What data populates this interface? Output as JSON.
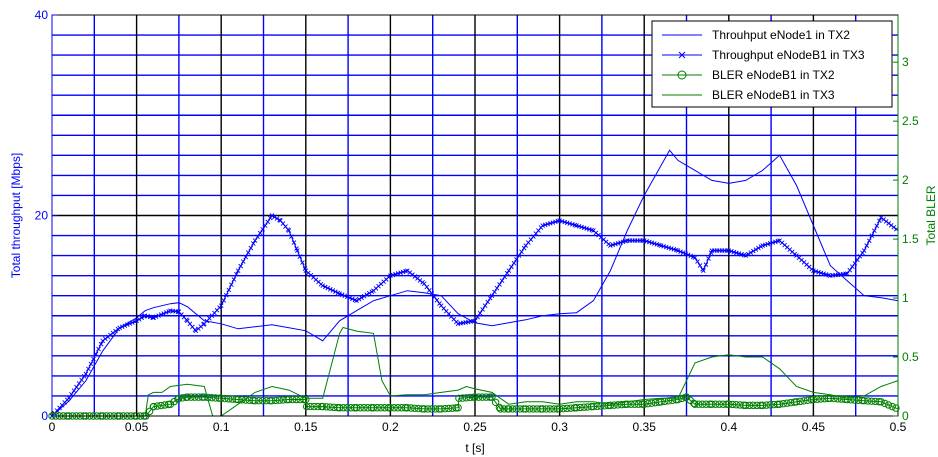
{
  "chart_data": {
    "type": "line",
    "xlabel": "t [s]",
    "ylabel_left": "Total throughput [Mbps]",
    "ylabel_right": "Total BLER",
    "xlim": [
      0,
      0.5
    ],
    "ylim_left": [
      0,
      40
    ],
    "ylim_right": [
      0,
      3.4
    ],
    "xticks": [
      0,
      0.05,
      0.1,
      0.15,
      0.2,
      0.25,
      0.3,
      0.35,
      0.4,
      0.45,
      0.5
    ],
    "xtick_labels": [
      "0",
      "0.05",
      "0.1",
      "0.15",
      "0.2",
      "0.25",
      "0.3",
      "0.35",
      "0.4",
      "0.45",
      "0.5"
    ],
    "yticks_left": [
      0,
      20,
      40
    ],
    "yticks_left_labels": [
      "0",
      "20",
      "40"
    ],
    "yticks_right": [
      0,
      0.5,
      1,
      1.5,
      2,
      2.5,
      3
    ],
    "yticks_right_labels": [
      "0",
      "0.5",
      "1",
      "1.5",
      "2",
      "2.5",
      "3"
    ],
    "grid": true,
    "legend_position": "top-right",
    "colors": {
      "throughput": "#0000ff",
      "bler": "#007f00",
      "grid_major": "#000000",
      "grid_minor": "#0000ff",
      "left_axis": "#0000ff",
      "right_axis": "#007f00"
    },
    "series": [
      {
        "name": "Throuhput eNode1 in TX2",
        "axis": "left",
        "style": "line",
        "x": [
          0,
          0.01,
          0.02,
          0.03,
          0.04,
          0.05,
          0.055,
          0.06,
          0.07,
          0.075,
          0.08,
          0.09,
          0.1,
          0.11,
          0.12,
          0.13,
          0.14,
          0.15,
          0.16,
          0.17,
          0.18,
          0.19,
          0.2,
          0.21,
          0.22,
          0.23,
          0.24,
          0.25,
          0.26,
          0.27,
          0.28,
          0.29,
          0.3,
          0.31,
          0.32,
          0.33,
          0.34,
          0.35,
          0.36,
          0.365,
          0.37,
          0.38,
          0.39,
          0.4,
          0.41,
          0.42,
          0.43,
          0.44,
          0.45,
          0.46,
          0.47,
          0.48,
          0.49,
          0.5
        ],
        "y": [
          0,
          1.5,
          3.5,
          6.5,
          8.8,
          9.8,
          10.5,
          10.8,
          11.2,
          11.3,
          10.9,
          9.5,
          9.2,
          8.7,
          8.9,
          9.1,
          8.8,
          8.5,
          7.5,
          9.5,
          10.5,
          11.5,
          12.0,
          12.5,
          12.3,
          12.0,
          10.2,
          9.3,
          9.0,
          9.3,
          9.6,
          10.0,
          10.2,
          10.3,
          11.5,
          14.5,
          18.5,
          22.0,
          25.0,
          26.5,
          25.5,
          24.5,
          23.5,
          23.2,
          23.5,
          24.5,
          26.0,
          23.0,
          19.0,
          15.0,
          13.5,
          12.0,
          11.8,
          11.5
        ]
      },
      {
        "name": "Throughput eNodeB1 in TX3",
        "axis": "left",
        "style": "line-x",
        "x": [
          0,
          0.01,
          0.02,
          0.03,
          0.04,
          0.05,
          0.055,
          0.06,
          0.07,
          0.075,
          0.08,
          0.085,
          0.09,
          0.1,
          0.11,
          0.12,
          0.13,
          0.135,
          0.14,
          0.145,
          0.15,
          0.16,
          0.17,
          0.18,
          0.19,
          0.2,
          0.21,
          0.22,
          0.23,
          0.24,
          0.25,
          0.26,
          0.27,
          0.28,
          0.29,
          0.3,
          0.31,
          0.32,
          0.33,
          0.34,
          0.35,
          0.36,
          0.37,
          0.38,
          0.385,
          0.39,
          0.4,
          0.41,
          0.42,
          0.43,
          0.44,
          0.45,
          0.46,
          0.47,
          0.48,
          0.49,
          0.5
        ],
        "y": [
          0,
          1.8,
          4.2,
          7.5,
          8.8,
          9.5,
          10.0,
          9.8,
          10.5,
          10.4,
          9.5,
          8.5,
          9.2,
          11.0,
          14.5,
          17.5,
          20.0,
          19.5,
          18.5,
          16.5,
          14.5,
          13.0,
          12.2,
          11.5,
          12.5,
          14.0,
          14.5,
          13.2,
          11.0,
          9.2,
          9.5,
          12.0,
          14.5,
          17.0,
          19.0,
          19.5,
          19.0,
          18.5,
          17.0,
          17.5,
          17.5,
          17.0,
          16.5,
          15.8,
          14.5,
          16.5,
          16.5,
          16.0,
          17.0,
          17.5,
          16.0,
          14.5,
          14.0,
          14.2,
          16.5,
          19.8,
          18.5
        ]
      },
      {
        "name": "BLER eNodeB1 in TX2",
        "axis": "right",
        "style": "line-o",
        "x": [
          0,
          0.01,
          0.02,
          0.03,
          0.04,
          0.05,
          0.0555,
          0.06,
          0.07,
          0.075,
          0.08,
          0.09,
          0.1,
          0.11,
          0.12,
          0.13,
          0.14,
          0.15,
          0.1505,
          0.16,
          0.17,
          0.18,
          0.19,
          0.2,
          0.21,
          0.22,
          0.23,
          0.24,
          0.2405,
          0.25,
          0.26,
          0.265,
          0.27,
          0.28,
          0.29,
          0.3,
          0.31,
          0.32,
          0.33,
          0.34,
          0.35,
          0.36,
          0.37,
          0.375,
          0.38,
          0.39,
          0.4,
          0.41,
          0.42,
          0.43,
          0.44,
          0.45,
          0.46,
          0.47,
          0.48,
          0.49,
          0.5
        ],
        "y": [
          0,
          0,
          0,
          0,
          0,
          0,
          0,
          0.08,
          0.1,
          0.15,
          0.16,
          0.16,
          0.15,
          0.14,
          0.13,
          0.13,
          0.14,
          0.14,
          0.08,
          0.08,
          0.07,
          0.07,
          0.07,
          0.07,
          0.07,
          0.06,
          0.06,
          0.07,
          0.15,
          0.16,
          0.16,
          0.06,
          0.06,
          0.06,
          0.06,
          0.06,
          0.07,
          0.08,
          0.09,
          0.1,
          0.1,
          0.12,
          0.14,
          0.16,
          0.1,
          0.1,
          0.1,
          0.09,
          0.09,
          0.1,
          0.12,
          0.14,
          0.15,
          0.14,
          0.13,
          0.12,
          0.06
        ]
      },
      {
        "name": "BLER eNodeB1 in TX3",
        "axis": "right",
        "style": "line",
        "x": [
          0,
          0.01,
          0.02,
          0.03,
          0.04,
          0.05,
          0.055,
          0.057,
          0.06,
          0.065,
          0.07,
          0.08,
          0.09,
          0.095,
          0.1,
          0.11,
          0.12,
          0.13,
          0.14,
          0.15,
          0.16,
          0.17,
          0.172,
          0.18,
          0.19,
          0.195,
          0.2,
          0.21,
          0.22,
          0.23,
          0.24,
          0.245,
          0.25,
          0.26,
          0.27,
          0.28,
          0.29,
          0.3,
          0.31,
          0.32,
          0.33,
          0.34,
          0.35,
          0.36,
          0.37,
          0.38,
          0.39,
          0.4,
          0.41,
          0.42,
          0.43,
          0.44,
          0.45,
          0.46,
          0.47,
          0.48,
          0.49,
          0.5
        ],
        "y": [
          0,
          0,
          0,
          0,
          0,
          0,
          0,
          0.18,
          0.2,
          0.2,
          0.25,
          0.27,
          0.25,
          0.0,
          0.0,
          0.1,
          0.2,
          0.25,
          0.22,
          0.15,
          0.15,
          0.7,
          0.75,
          0.72,
          0.7,
          0.3,
          0.17,
          0.18,
          0.18,
          0.2,
          0.22,
          0.25,
          0.23,
          0.2,
          0.1,
          0.12,
          0.12,
          0.1,
          0.12,
          0.12,
          0.1,
          0.12,
          0.14,
          0.15,
          0.15,
          0.45,
          0.5,
          0.52,
          0.5,
          0.5,
          0.4,
          0.25,
          0.2,
          0.18,
          0.15,
          0.17,
          0.25,
          0.3
        ]
      }
    ]
  }
}
